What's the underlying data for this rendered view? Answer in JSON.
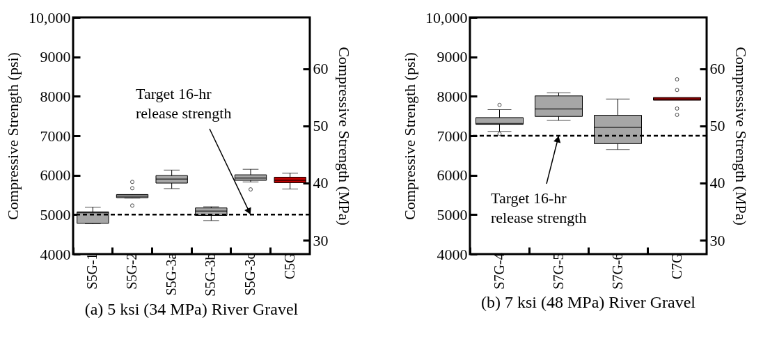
{
  "chart_data": [
    {
      "type": "box",
      "title": "(a) 5 ksi (34 MPa) River Gravel",
      "ylabel": "Compressive Strength (psi)",
      "y2label": "Compressive Strength (MPa)",
      "categories": [
        "S5G-1",
        "S5G-2",
        "S5G-3a",
        "S5G-3b",
        "S5G-3c",
        "C5G"
      ],
      "colors": [
        "#a6a6a6",
        "#a6a6a6",
        "#a6a6a6",
        "#a6a6a6",
        "#a6a6a6",
        "#c00000"
      ],
      "boxes": [
        {
          "low": 4770,
          "q1": 4780,
          "median": 5050,
          "q3": 5070,
          "high": 5190
        },
        {
          "low": 5420,
          "q1": 5430,
          "median": 5470,
          "q3": 5510,
          "high": 5510,
          "outliers": [
            5830,
            5670,
            5230
          ]
        },
        {
          "low": 5660,
          "q1": 5800,
          "median": 5900,
          "q3": 5990,
          "high": 6130
        },
        {
          "low": 4850,
          "q1": 4980,
          "median": 5090,
          "q3": 5170,
          "high": 5200
        },
        {
          "low": 5830,
          "q1": 5870,
          "median": 5930,
          "q3": 6010,
          "high": 6150,
          "outliers": [
            5640
          ]
        },
        {
          "low": 5650,
          "q1": 5810,
          "median": 5870,
          "q3": 5950,
          "high": 6050
        }
      ],
      "ylim": [
        4000,
        10000
      ],
      "yticks": [
        4000,
        5000,
        6000,
        7000,
        8000,
        9000,
        {
          "value": 10000,
          "label": "10,000"
        }
      ],
      "y2lim": [
        27.58,
        68.95
      ],
      "y2ticks": [
        30,
        40,
        50,
        60
      ],
      "ref_lines": [
        {
          "axis": "y",
          "value": 5000,
          "color": "#000000",
          "line_style": "dashed"
        }
      ],
      "annotations": [
        {
          "text": "Target 16-hr\nrelease strength",
          "x": "S5G-3c",
          "y": 5000
        }
      ]
    },
    {
      "type": "box",
      "title": "(b) 7 ksi (48 MPa) River Gravel",
      "ylabel": "Compressive Strength (psi)",
      "y2label": "Compressive Strength (MPa)",
      "categories": [
        "S7G-4",
        "S7G-5",
        "S7G-6",
        "C7G"
      ],
      "colors": [
        "#a6a6a6",
        "#a6a6a6",
        "#a6a6a6",
        "#c00000"
      ],
      "boxes": [
        {
          "low": 7110,
          "q1": 7290,
          "median": 7310,
          "q3": 7460,
          "high": 7660,
          "outliers": [
            7780,
            7050
          ]
        },
        {
          "low": 7390,
          "q1": 7490,
          "median": 7680,
          "q3": 8010,
          "high": 8090
        },
        {
          "low": 6650,
          "q1": 6800,
          "median": 7210,
          "q3": 7520,
          "high": 7930
        },
        {
          "low": 7900,
          "q1": 7900,
          "median": 7930,
          "q3": 7970,
          "high": 7970,
          "outliers": [
            8430,
            8160,
            7690,
            7530
          ]
        }
      ],
      "ylim": [
        4000,
        10000
      ],
      "yticks": [
        4000,
        5000,
        6000,
        7000,
        8000,
        9000,
        {
          "value": 10000,
          "label": "10,000"
        }
      ],
      "y2lim": [
        27.58,
        68.95
      ],
      "y2ticks": [
        30,
        40,
        50,
        60
      ],
      "ref_lines": [
        {
          "axis": "y",
          "value": 7000,
          "color": "#000000",
          "line_style": "dashed"
        }
      ],
      "annotations": [
        {
          "text": "Target 16-hr\nrelease strength",
          "x": "S7G-5",
          "y": 7000
        }
      ]
    }
  ]
}
